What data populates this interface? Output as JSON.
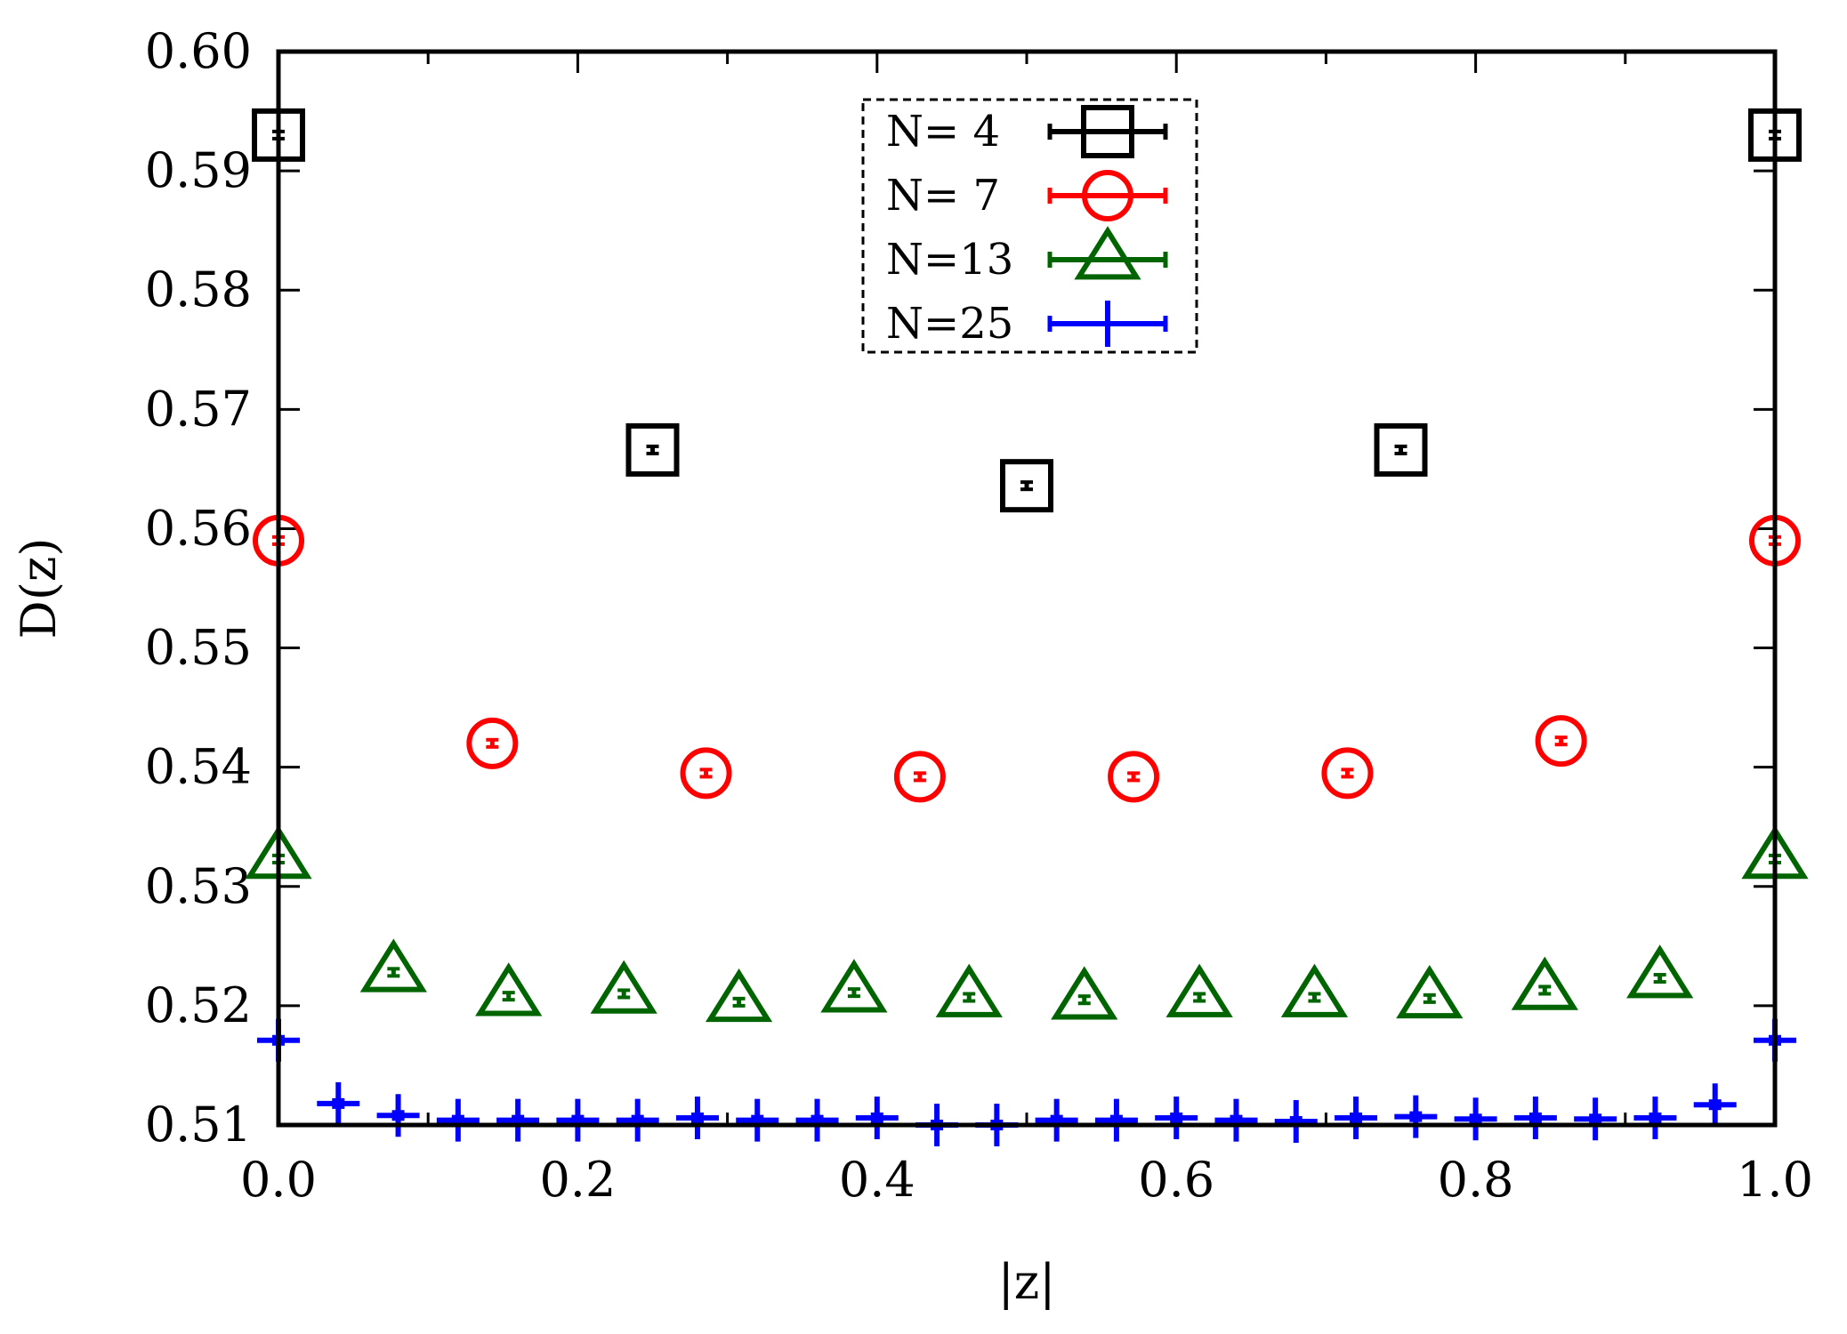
{
  "chart_data": {
    "type": "scatter",
    "title": "",
    "xlabel": "|z|",
    "ylabel": "D(z)",
    "xlim": [
      0.0,
      1.0
    ],
    "ylim": [
      0.51,
      0.6
    ],
    "x_ticks": [
      0.0,
      0.2,
      0.4,
      0.6,
      0.8,
      1.0
    ],
    "x_tick_labels": [
      "0.0",
      "0.2",
      "0.4",
      "0.6",
      "0.8",
      "1.0"
    ],
    "y_ticks": [
      0.51,
      0.52,
      0.53,
      0.54,
      0.55,
      0.56,
      0.57,
      0.58,
      0.59,
      0.6
    ],
    "y_tick_labels": [
      "0.51",
      "0.52",
      "0.53",
      "0.54",
      "0.55",
      "0.56",
      "0.57",
      "0.58",
      "0.59",
      "0.60"
    ],
    "grid": false,
    "legend_position": "top-center",
    "series": [
      {
        "name": "N= 4",
        "marker": "square",
        "color": "#000000",
        "x": [
          0.0,
          0.25,
          0.5,
          0.75,
          1.0
        ],
        "y": [
          0.593,
          0.5666,
          0.5636,
          0.5666,
          0.593
        ],
        "err": [
          0.0003,
          0.0003,
          0.0003,
          0.0003,
          0.0003
        ]
      },
      {
        "name": "N= 7",
        "marker": "circle",
        "color": "#ff0000",
        "x": [
          0.0,
          0.1429,
          0.2857,
          0.4286,
          0.5714,
          0.7143,
          0.8571,
          1.0
        ],
        "y": [
          0.559,
          0.542,
          0.5395,
          0.5392,
          0.5392,
          0.5395,
          0.5422,
          0.559
        ],
        "err": [
          0.0003,
          0.0003,
          0.0003,
          0.0003,
          0.0003,
          0.0003,
          0.0003,
          0.0003
        ]
      },
      {
        "name": "N=13",
        "marker": "triangle",
        "color": "#006400",
        "x": [
          0.0,
          0.0769,
          0.1538,
          0.2308,
          0.3077,
          0.3846,
          0.4615,
          0.5385,
          0.6154,
          0.6923,
          0.7692,
          0.8462,
          0.9231,
          1.0
        ],
        "y": [
          0.5323,
          0.5228,
          0.5208,
          0.521,
          0.5203,
          0.5211,
          0.5207,
          0.5205,
          0.5207,
          0.5207,
          0.5206,
          0.5213,
          0.5223,
          0.5323
        ],
        "err": [
          0.0003,
          0.0003,
          0.0003,
          0.0003,
          0.0003,
          0.0003,
          0.0003,
          0.0003,
          0.0003,
          0.0003,
          0.0003,
          0.0003,
          0.0003,
          0.0003
        ]
      },
      {
        "name": "N=25",
        "marker": "plus",
        "color": "#0000ff",
        "x": [
          0.0,
          0.04,
          0.08,
          0.12,
          0.16,
          0.2,
          0.24,
          0.28,
          0.32,
          0.36,
          0.4,
          0.44,
          0.48,
          0.52,
          0.56,
          0.6,
          0.64,
          0.68,
          0.72,
          0.76,
          0.8,
          0.84,
          0.88,
          0.92,
          0.96,
          1.0
        ],
        "y": [
          0.5171,
          0.5118,
          0.5108,
          0.5104,
          0.5104,
          0.5104,
          0.5104,
          0.5106,
          0.5104,
          0.5104,
          0.5106,
          0.51,
          0.51,
          0.5104,
          0.5104,
          0.5106,
          0.5104,
          0.5103,
          0.5106,
          0.5107,
          0.5105,
          0.5106,
          0.5105,
          0.5106,
          0.5117,
          0.5171
        ],
        "err": [
          0.0003,
          0.0003,
          0.0003,
          0.0003,
          0.0003,
          0.0003,
          0.0003,
          0.0003,
          0.0003,
          0.0003,
          0.0003,
          0.0003,
          0.0003,
          0.0003,
          0.0003,
          0.0003,
          0.0003,
          0.0003,
          0.0003,
          0.0003,
          0.0003,
          0.0003,
          0.0003,
          0.0003,
          0.0003,
          0.0003
        ]
      }
    ]
  }
}
